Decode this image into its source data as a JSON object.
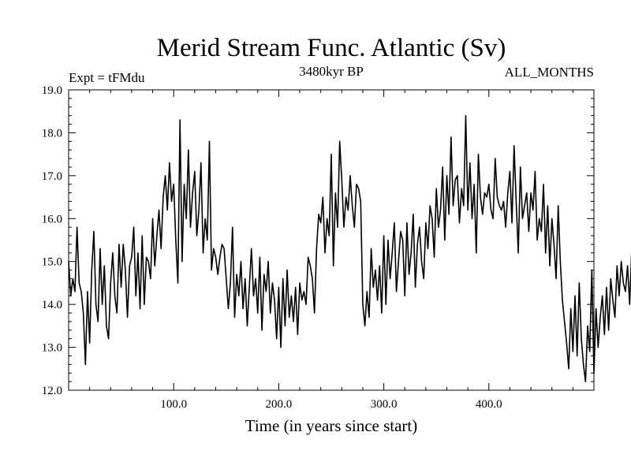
{
  "chart_data": {
    "type": "line",
    "title": "Merid Stream Func. Atlantic (Sv)",
    "subtitle_left": "Expt = tFMdu",
    "subtitle_center": "3480kyr BP",
    "subtitle_right": "ALL_MONTHS",
    "xlabel": "Time (in years since start)",
    "ylabel": "",
    "xlim": [
      0,
      500
    ],
    "ylim": [
      12.0,
      19.0
    ],
    "x_ticks": [
      100,
      200,
      300,
      400
    ],
    "x_tick_labels": [
      "100.0",
      "200.0",
      "300.0",
      "400.0"
    ],
    "y_ticks": [
      12,
      13,
      14,
      15,
      16,
      17,
      18,
      19
    ],
    "y_tick_labels": [
      "12.0",
      "13.0",
      "14.0",
      "15.0",
      "16.0",
      "17.0",
      "18.0",
      "19.0"
    ],
    "series": [
      {
        "name": "Atlantic MOC",
        "color": "#000000",
        "x_start": 0,
        "x_step": 2,
        "values": [
          15.0,
          14.2,
          14.6,
          14.3,
          15.8,
          14.5,
          14.3,
          13.8,
          12.6,
          14.3,
          13.1,
          14.8,
          15.7,
          14.0,
          13.6,
          15.3,
          14.0,
          14.9,
          13.5,
          13.2,
          14.5,
          15.2,
          14.2,
          13.8,
          15.4,
          14.4,
          15.4,
          14.8,
          13.7,
          14.9,
          15.1,
          15.8,
          14.2,
          15.2,
          13.9,
          15.6,
          14.0,
          15.1,
          15.0,
          14.6,
          16.0,
          14.9,
          15.6,
          16.2,
          15.3,
          16.5,
          17.0,
          16.2,
          17.3,
          16.4,
          16.8,
          15.5,
          14.5,
          18.3,
          15.0,
          16.8,
          16.0,
          17.6,
          15.8,
          16.6,
          17.1,
          15.6,
          16.2,
          17.3,
          15.2,
          16.0,
          15.5,
          17.8,
          14.8,
          15.3,
          15.1,
          14.7,
          15.1,
          15.4,
          15.3,
          14.6,
          13.9,
          14.5,
          15.8,
          13.7,
          14.7,
          14.2,
          15.0,
          13.9,
          14.6,
          13.5,
          14.4,
          15.3,
          14.2,
          14.6,
          13.8,
          15.1,
          13.4,
          14.7,
          14.3,
          15.0,
          13.8,
          14.5,
          14.1,
          13.2,
          14.4,
          13.0,
          14.6,
          13.5,
          14.8,
          13.7,
          14.2,
          13.6,
          14.4,
          13.3,
          14.5,
          14.1,
          14.3,
          14.0,
          15.1,
          14.9,
          14.6,
          13.8,
          15.3,
          16.1,
          15.9,
          16.5,
          15.2,
          16.0,
          15.6,
          17.5,
          14.9,
          16.6,
          15.8,
          17.8,
          16.9,
          15.8,
          16.5,
          16.2,
          17.0,
          16.3,
          15.8,
          16.8,
          16.7,
          16.4,
          14.0,
          13.5,
          14.3,
          13.7,
          15.3,
          14.4,
          14.8,
          14.1,
          14.9,
          13.8,
          15.6,
          14.0,
          15.5,
          14.6,
          15.2,
          15.9,
          14.3,
          15.0,
          15.7,
          15.5,
          14.2,
          15.9,
          14.7,
          15.2,
          16.1,
          14.4,
          15.4,
          15.8,
          15.0,
          14.6,
          15.9,
          15.3,
          16.3,
          16.0,
          15.1,
          16.7,
          15.8,
          16.2,
          17.2,
          15.5,
          17.0,
          16.1,
          17.9,
          16.3,
          16.9,
          17.0,
          15.9,
          16.7,
          16.3,
          18.4,
          16.2,
          17.3,
          16.0,
          16.8,
          15.2,
          17.5,
          16.5,
          16.1,
          16.6,
          16.5,
          16.8,
          16.2,
          16.0,
          17.4,
          16.5,
          16.3,
          16.2,
          16.4,
          15.8,
          16.6,
          17.1,
          15.9,
          17.7,
          16.4,
          15.2,
          17.2,
          16.0,
          16.3,
          16.6,
          15.7,
          16.6,
          16.2,
          17.1,
          15.5,
          16.0,
          15.7,
          16.8,
          15.2,
          16.3,
          14.9,
          16.0,
          15.4,
          14.6,
          16.3,
          15.0,
          14.1,
          13.6,
          13.1,
          12.5,
          13.9,
          12.9,
          14.2,
          12.8,
          14.5,
          13.2,
          12.6,
          12.2,
          13.5,
          12.9,
          14.8,
          12.4,
          13.9,
          13.0,
          13.7,
          14.2,
          13.3,
          14.4,
          13.4,
          14.6,
          14.1,
          13.7,
          14.9,
          14.2,
          15.0,
          14.5,
          14.3,
          14.9,
          14.0,
          15.3,
          14.4,
          15.0,
          14.7,
          13.8,
          15.4,
          15.2,
          15.0,
          15.8,
          16.2,
          17.4,
          16.6,
          16.9,
          16.0,
          17.2,
          15.8,
          17.1,
          16.6,
          16.5,
          16.0,
          16.9,
          15.6,
          17.5,
          16.8,
          16.2,
          17.3,
          16.1,
          17.6,
          16.5,
          17.7,
          16.0,
          16.9,
          15.3,
          16.6,
          15.2,
          16.3,
          16.9,
          16.8,
          17.4,
          16.2,
          17.2,
          16.6,
          17.8,
          16.4,
          17.3,
          16.1,
          16.5,
          17.9
        ]
      }
    ]
  }
}
